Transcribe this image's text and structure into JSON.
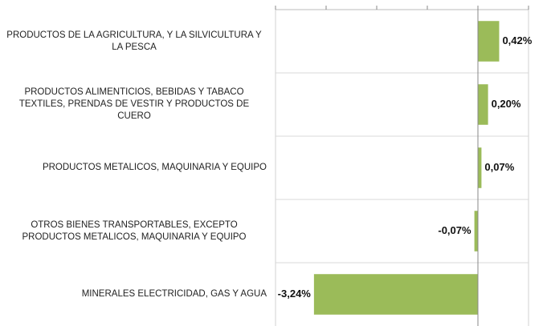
{
  "chart_data": {
    "type": "bar",
    "orientation": "horizontal",
    "categories": [
      "PRODUCTOS DE LA AGRICULTURA, Y LA SILVICULTURA Y LA PESCA",
      "PRODUCTOS ALIMENTICIOS, BEBIDAS Y TABACO TEXTILES, PRENDAS DE VESTIR Y PRODUCTOS DE CUERO",
      "PRODUCTOS METALICOS, MAQUINARIA Y EQUIPO",
      "OTROS BIENES TRANSPORTABLES, EXCEPTO PRODUCTOS METALICOS, MAQUINARIA Y EQUIPO",
      "MINERALES ELECTRICIDAD, GAS Y AGUA"
    ],
    "values": [
      0.42,
      0.2,
      0.07,
      -0.07,
      -3.24
    ],
    "value_labels": [
      "0,42%",
      "0,20%",
      "0,07%",
      "-0,07%",
      "-3,24%"
    ],
    "color": "#9bbb59",
    "xlim": [
      -4,
      1
    ],
    "xticks": [
      -4,
      -3,
      -2,
      -1,
      0,
      1
    ]
  }
}
